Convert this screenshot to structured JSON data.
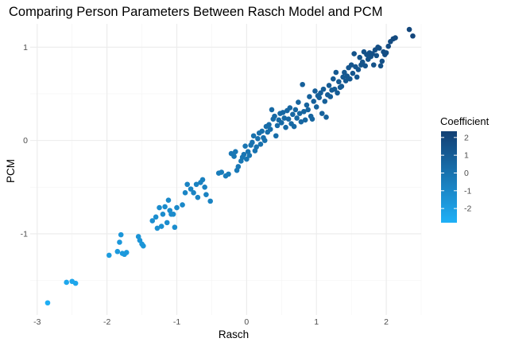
{
  "chart_data": {
    "type": "scatter",
    "title": "Comparing Person Parameters Between Rasch Model and PCM",
    "xlabel": "Rasch",
    "ylabel": "PCM",
    "xlim": [
      -3.1,
      2.5
    ],
    "ylim": [
      -1.87,
      1.25
    ],
    "x_ticks": [
      -3,
      -2,
      -1,
      0,
      1,
      2
    ],
    "y_ticks": [
      -1,
      0,
      1
    ],
    "grid": true,
    "legend": {
      "title": "Coefficient",
      "placement": "right",
      "range": [
        -2.8,
        2.35
      ],
      "ticks": [
        2,
        1,
        0,
        -1,
        -2
      ],
      "color_low": "#1fb0f7",
      "color_high": "#123f73"
    },
    "points": [
      [
        -2.85,
        -1.74
      ],
      [
        -2.58,
        -1.52
      ],
      [
        -2.5,
        -1.51
      ],
      [
        -2.45,
        -1.53
      ],
      [
        -1.97,
        -1.23
      ],
      [
        -1.85,
        -1.19
      ],
      [
        -1.82,
        -1.09
      ],
      [
        -1.8,
        -1.01
      ],
      [
        -1.78,
        -1.21
      ],
      [
        -1.75,
        -1.22
      ],
      [
        -1.72,
        -1.2
      ],
      [
        -1.55,
        -1.03
      ],
      [
        -1.53,
        -1.07
      ],
      [
        -1.5,
        -1.11
      ],
      [
        -1.48,
        -1.13
      ],
      [
        -1.35,
        -0.86
      ],
      [
        -1.3,
        -0.82
      ],
      [
        -1.28,
        -0.94
      ],
      [
        -1.25,
        -0.72
      ],
      [
        -1.22,
        -0.92
      ],
      [
        -1.2,
        -0.79
      ],
      [
        -1.17,
        -0.71
      ],
      [
        -1.14,
        -0.88
      ],
      [
        -1.12,
        -0.64
      ],
      [
        -1.1,
        -0.75
      ],
      [
        -1.08,
        -0.79
      ],
      [
        -1.05,
        -0.79
      ],
      [
        -1.03,
        -0.93
      ],
      [
        -1,
        -0.72
      ],
      [
        -0.92,
        -0.69
      ],
      [
        -0.88,
        -0.56
      ],
      [
        -0.85,
        -0.47
      ],
      [
        -0.8,
        -0.52
      ],
      [
        -0.76,
        -0.56
      ],
      [
        -0.72,
        -0.47
      ],
      [
        -0.7,
        -0.61
      ],
      [
        -0.66,
        -0.45
      ],
      [
        -0.63,
        -0.42
      ],
      [
        -0.6,
        -0.5
      ],
      [
        -0.58,
        -0.58
      ],
      [
        -0.52,
        -0.65
      ],
      [
        -0.4,
        -0.35
      ],
      [
        -0.36,
        -0.34
      ],
      [
        -0.3,
        -0.38
      ],
      [
        -0.26,
        -0.36
      ],
      [
        -0.22,
        -0.14
      ],
      [
        -0.18,
        -0.17
      ],
      [
        -0.16,
        -0.12
      ],
      [
        -0.14,
        -0.32
      ],
      [
        -0.12,
        -0.28
      ],
      [
        -0.08,
        -0.22
      ],
      [
        -0.06,
        -0.18
      ],
      [
        -0.04,
        -0.15
      ],
      [
        -0.02,
        -0.06
      ],
      [
        0,
        -0.2
      ],
      [
        0.02,
        -0.12
      ],
      [
        0.04,
        -0.16
      ],
      [
        0.06,
        -0.05
      ],
      [
        0.08,
        -0.02
      ],
      [
        0.1,
        0.05
      ],
      [
        0.12,
        -0.11
      ],
      [
        0.14,
        -0.07
      ],
      [
        0.16,
        0.02
      ],
      [
        0.18,
        0.08
      ],
      [
        0.2,
        -0.04
      ],
      [
        0.22,
        0.1
      ],
      [
        0.24,
        0.03
      ],
      [
        0.26,
        0.0
      ],
      [
        0.28,
        0.15
      ],
      [
        0.3,
        0.09
      ],
      [
        0.32,
        0.17
      ],
      [
        0.34,
        0.12
      ],
      [
        0.36,
        0.33
      ],
      [
        0.38,
        0.23
      ],
      [
        0.4,
        0.26
      ],
      [
        0.42,
        0.05
      ],
      [
        0.44,
        0.16
      ],
      [
        0.46,
        0.22
      ],
      [
        0.48,
        0.29
      ],
      [
        0.5,
        0.19
      ],
      [
        0.52,
        0.3
      ],
      [
        0.54,
        0.24
      ],
      [
        0.56,
        0.14
      ],
      [
        0.58,
        0.32
      ],
      [
        0.6,
        0.23
      ],
      [
        0.62,
        0.35
      ],
      [
        0.64,
        0.18
      ],
      [
        0.66,
        0.28
      ],
      [
        0.68,
        0.15
      ],
      [
        0.7,
        0.33
      ],
      [
        0.72,
        0.24
      ],
      [
        0.74,
        0.41
      ],
      [
        0.76,
        0.29
      ],
      [
        0.78,
        0.2
      ],
      [
        0.8,
        0.6
      ],
      [
        0.82,
        0.31
      ],
      [
        0.84,
        0.22
      ],
      [
        0.86,
        0.38
      ],
      [
        0.88,
        0.33
      ],
      [
        0.9,
        0.47
      ],
      [
        0.92,
        0.26
      ],
      [
        0.94,
        0.23
      ],
      [
        0.96,
        0.42
      ],
      [
        0.98,
        0.53
      ],
      [
        1.0,
        0.36
      ],
      [
        1.02,
        0.48
      ],
      [
        1.04,
        0.46
      ],
      [
        1.06,
        0.51
      ],
      [
        1.08,
        0.29
      ],
      [
        1.1,
        0.55
      ],
      [
        1.12,
        0.42
      ],
      [
        1.14,
        0.25
      ],
      [
        1.16,
        0.49
      ],
      [
        1.18,
        0.59
      ],
      [
        1.2,
        0.47
      ],
      [
        1.22,
        0.54
      ],
      [
        1.24,
        0.66
      ],
      [
        1.26,
        0.55
      ],
      [
        1.28,
        0.73
      ],
      [
        1.3,
        0.51
      ],
      [
        1.32,
        0.63
      ],
      [
        1.34,
        0.57
      ],
      [
        1.36,
        0.58
      ],
      [
        1.38,
        0.68
      ],
      [
        1.4,
        0.73
      ],
      [
        1.42,
        0.64
      ],
      [
        1.44,
        0.69
      ],
      [
        1.46,
        0.78
      ],
      [
        1.48,
        0.66
      ],
      [
        1.5,
        0.81
      ],
      [
        1.52,
        0.72
      ],
      [
        1.54,
        0.93
      ],
      [
        1.56,
        0.79
      ],
      [
        1.58,
        0.68
      ],
      [
        1.6,
        0.76
      ],
      [
        1.62,
        0.89
      ],
      [
        1.64,
        0.81
      ],
      [
        1.66,
        0.84
      ],
      [
        1.68,
        0.95
      ],
      [
        1.7,
        0.8
      ],
      [
        1.72,
        0.92
      ],
      [
        1.74,
        0.87
      ],
      [
        1.76,
        0.94
      ],
      [
        1.78,
        0.9
      ],
      [
        1.8,
        0.93
      ],
      [
        1.82,
        0.81
      ],
      [
        1.84,
        0.97
      ],
      [
        1.86,
        0.91
      ],
      [
        1.88,
        1.0
      ],
      [
        1.9,
        0.99
      ],
      [
        1.92,
        0.8
      ],
      [
        1.94,
        0.85
      ],
      [
        1.96,
        0.95
      ],
      [
        1.98,
        0.92
      ],
      [
        2.0,
        0.94
      ],
      [
        2.03,
        1.01
      ],
      [
        2.06,
        1.06
      ],
      [
        2.1,
        1.09
      ],
      [
        2.13,
        1.1
      ],
      [
        2.33,
        1.19
      ],
      [
        2.38,
        1.12
      ]
    ]
  }
}
